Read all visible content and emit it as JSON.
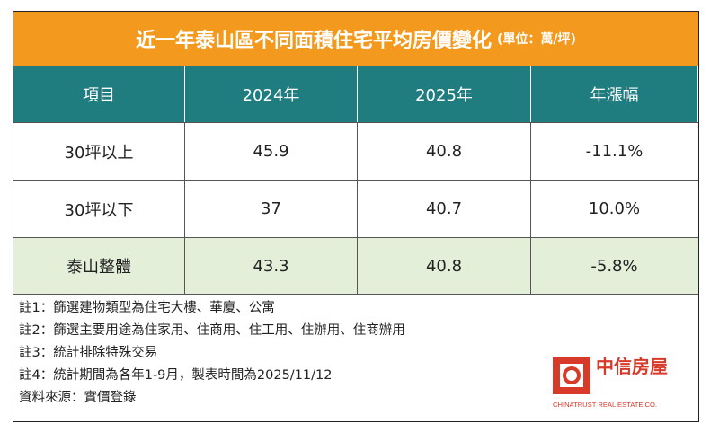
{
  "header": {
    "title": "近一年泰山區不同面積住宅平均房價變化",
    "unit": "(單位：萬/坪)"
  },
  "table": {
    "columns": [
      "項目",
      "2024年",
      "2025年",
      "年漲幅"
    ],
    "rows": [
      [
        "30坪以上",
        "45.9",
        "40.8",
        "-11.1%"
      ],
      [
        "30坪以下",
        "37",
        "40.7",
        "10.0%"
      ],
      [
        "泰山整體",
        "43.3",
        "40.8",
        "-5.8%"
      ]
    ]
  },
  "notes": [
    "註1：篩選建物類型為住宅大樓、華廈、公寓",
    "註2：篩選主要用途為住家用、住商用、住工用、住辦用、住商辦用",
    "註3：統計排除特殊交易",
    "註4：統計期間為各年1-9月，製表時間為2025/11/12",
    "資料來源：實價登錄"
  ],
  "logo": {
    "name": "中信房屋",
    "english": "CHINATRUST REAL ESTATE CO."
  }
}
